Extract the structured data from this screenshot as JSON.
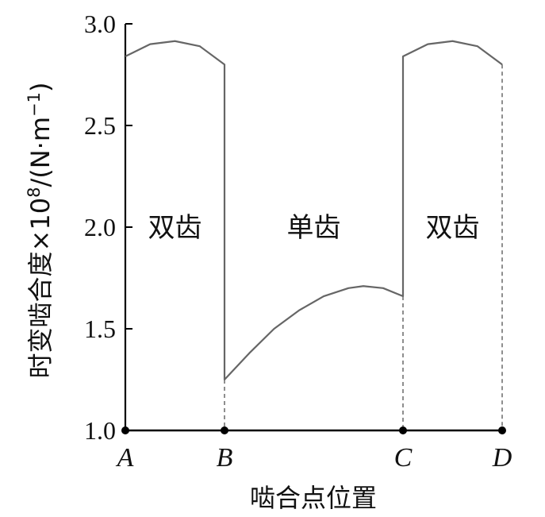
{
  "chart_data": {
    "type": "line",
    "title": "",
    "xlabel": "啮合点位置",
    "ylabel": "时变啮合度×10⁸/(N·m⁻¹)",
    "ylabel_parts": {
      "main": "时变啮合度×10",
      "exp": "8",
      "unit_open": "/(N·m",
      "unit_exp": "−1",
      "unit_close": ")"
    },
    "ylim": [
      1.0,
      3.0
    ],
    "yticks": [
      "1.0",
      "1.5",
      "2.0",
      "2.5",
      "3.0"
    ],
    "ytick_values": [
      1.0,
      1.5,
      2.0,
      2.5,
      3.0
    ],
    "xlim": [
      0,
      3.8
    ],
    "points": [
      {
        "label": "A",
        "x": 0
      },
      {
        "label": "B",
        "x": 1
      },
      {
        "label": "C",
        "x": 2.8
      },
      {
        "label": "D",
        "x": 3.8
      }
    ],
    "regions": [
      {
        "label": "双齿",
        "x": 0.5
      },
      {
        "label": "单齿",
        "x": 1.9
      },
      {
        "label": "双齿",
        "x": 3.3
      }
    ],
    "series": [
      {
        "values": [
          [
            0,
            2.84
          ],
          [
            0.25,
            2.9
          ],
          [
            0.5,
            2.915
          ],
          [
            0.75,
            2.89
          ],
          [
            1.0,
            2.8
          ],
          [
            1.0,
            1.25
          ],
          [
            1.25,
            1.38
          ],
          [
            1.5,
            1.5
          ],
          [
            1.75,
            1.59
          ],
          [
            2.0,
            1.66
          ],
          [
            2.25,
            1.7
          ],
          [
            2.4,
            1.71
          ],
          [
            2.6,
            1.7
          ],
          [
            2.8,
            1.66
          ],
          [
            2.8,
            2.84
          ],
          [
            3.05,
            2.9
          ],
          [
            3.3,
            2.915
          ],
          [
            3.55,
            2.89
          ],
          [
            3.8,
            2.8
          ]
        ]
      }
    ],
    "dashed_guides_at_x": [
      1,
      2.8,
      3.8
    ],
    "colors": {
      "curve": "#666666",
      "axis": "#000000",
      "text": "#111111"
    }
  }
}
